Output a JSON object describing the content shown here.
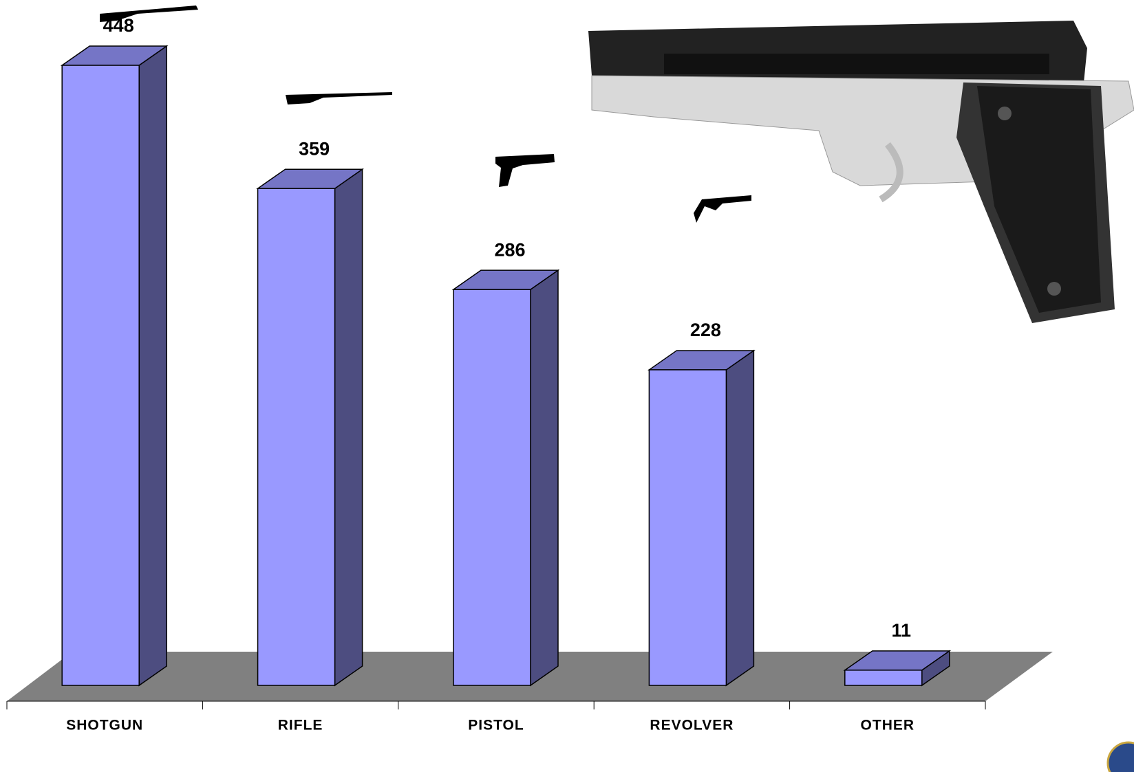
{
  "chart_data": {
    "type": "bar3d",
    "categories": [
      "SHOTGUN",
      "RIFLE",
      "PISTOL",
      "REVOLVER",
      "OTHER"
    ],
    "values": [
      448,
      359,
      286,
      228,
      11
    ],
    "color": "#9999ff",
    "top_color": "#7575c6",
    "side_color": "#4d4d80",
    "floor_color": "#808080"
  }
}
